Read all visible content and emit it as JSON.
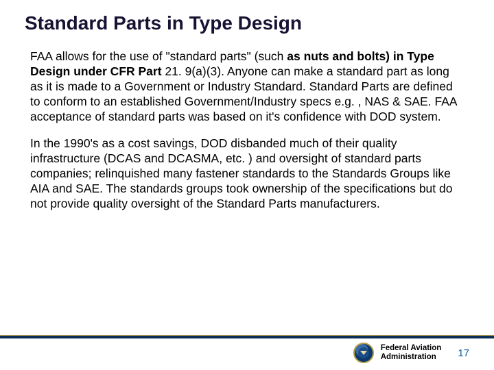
{
  "title": "Standard Parts in Type Design",
  "paragraphs": [
    {
      "runs": [
        {
          "text": "FAA allows for the use of \"standard parts\"  (such ",
          "bold": false
        },
        {
          "text": "as nuts and bolts) in Type Design under CFR Part",
          "bold": true
        },
        {
          "text": " 21. 9(a)(3).  Anyone can make a standard part as long as it is made to a Government or Industry Standard.  Standard Parts are defined to conform to an established Government/Industry specs e.g. , NAS & SAE.  FAA acceptance of standard parts was based on it's confidence with DOD system.",
          "bold": false
        }
      ]
    },
    {
      "runs": [
        {
          "text": "In the 1990's as a cost savings, DOD disbanded much of their quality infrastructure (DCAS and DCASMA, etc. )  and oversight of standard parts companies; relinquished many fastener standards to the Standards Groups like AIA and SAE.  The standards groups took ownership of the specifications but do not provide quality oversight of the Standard Parts manufacturers.",
          "bold": false
        }
      ]
    }
  ],
  "footer": {
    "org_line1": "Federal Aviation",
    "org_line2": "Administration",
    "page_number": "17"
  },
  "colors": {
    "title": "#181233",
    "footer_bar": "#0b2f56",
    "footer_gold": "#b59a4a",
    "page_num": "#0b5aa1"
  }
}
